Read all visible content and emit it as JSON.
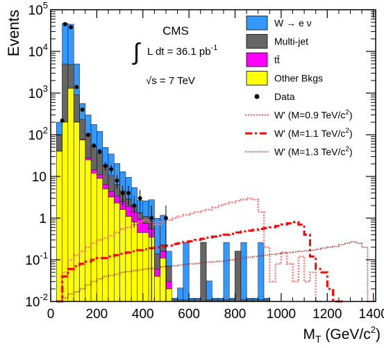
{
  "chart_data": {
    "type": "bar",
    "title": "",
    "xlabel_main": "M",
    "xlabel_sub": "T",
    "xlabel_rest": " (GeV/c",
    "xlabel_sup": "2",
    "xlabel_end": ")",
    "ylabel": "Events",
    "x_scale": "linear",
    "y_scale": "log",
    "xlim": [
      0,
      1410
    ],
    "ylim": [
      0.01,
      100000
    ],
    "x_ticks": [
      0,
      200,
      400,
      600,
      800,
      1000,
      1200,
      1400
    ],
    "x_tick_labels": [
      "0",
      "200",
      "400",
      "600",
      "800",
      "1000",
      "1200",
      "1400"
    ],
    "y_ticks": [
      {
        "value": 0.01,
        "mant": "10",
        "exp": "-2"
      },
      {
        "value": 0.1,
        "mant": "10",
        "exp": "-1"
      },
      {
        "value": 1,
        "mant": "1",
        "exp": ""
      },
      {
        "value": 10,
        "mant": "10",
        "exp": ""
      },
      {
        "value": 100,
        "mant": "10",
        "exp": "2"
      },
      {
        "value": 1000,
        "mant": "10",
        "exp": "3"
      },
      {
        "value": 10000,
        "mant": "10",
        "exp": "4"
      },
      {
        "value": 100000,
        "mant": "10",
        "exp": "5"
      }
    ],
    "annotations": {
      "experiment": "CMS",
      "lumi_integral": "∫",
      "lumi_text": "L dt = 36.1 pb",
      "lumi_exp": "-1",
      "energy_sqrt": "√",
      "energy_text": "s = 7 TeV"
    },
    "colors": {
      "wenu": "#3399ff",
      "multijet": "#666666",
      "ttbar": "#ff00ff",
      "other": "#ffff00",
      "data": "#000000",
      "wprime09": "#ff7777",
      "wprime11": "#ff0000",
      "wprime13": "#993333"
    },
    "legend": {
      "position": "top-right",
      "entries": [
        {
          "id": "wenu",
          "label": "W → e ν",
          "style": "box"
        },
        {
          "id": "multijet",
          "label": "Multi-jet",
          "style": "box"
        },
        {
          "id": "ttbar",
          "label": "tt̄",
          "style": "box"
        },
        {
          "id": "other",
          "label": "Other Bkgs",
          "style": "box"
        },
        {
          "id": "data",
          "label": "Data",
          "style": "marker"
        },
        {
          "id": "wprime09",
          "label": "W' (M=0.9 TeV/c",
          "sup": "2",
          "end": ")",
          "style": "dotted"
        },
        {
          "id": "wprime11",
          "label": "W' (M=1.1 TeV/c",
          "sup": "2",
          "end": ")",
          "style": "dashed"
        },
        {
          "id": "wprime13",
          "label": "W' (M=1.3 TeV/c",
          "sup": "2",
          "end": ")",
          "style": "dense-dotted"
        }
      ]
    },
    "bin_edges": [
      25,
      50,
      75,
      100,
      125,
      150,
      175,
      200,
      225,
      250,
      275,
      300,
      325,
      350,
      375,
      400,
      425,
      450,
      475,
      500,
      525,
      550,
      575,
      600,
      625,
      650,
      675,
      700,
      725,
      750,
      775,
      800,
      825,
      850,
      875,
      900,
      925,
      950
    ],
    "stack": [
      {
        "id": "other",
        "values": [
          40,
          200,
          1300,
          200,
          75,
          25,
          12,
          9,
          5,
          3.2,
          2.3,
          1.6,
          1.1,
          0.8,
          0.45,
          0.45,
          0.35,
          0.04,
          0.11,
          0.02,
          0.01,
          0.01,
          0.01,
          0.01,
          0.01,
          0.01,
          0.01,
          0.01,
          0.01,
          0.01,
          0.01,
          0.01,
          0.01,
          0.01,
          0.01,
          0.01,
          0.01
        ]
      },
      {
        "id": "ttbar",
        "values": [
          0.1,
          0.4,
          2,
          3,
          3,
          3,
          2.5,
          2,
          1.5,
          1.2,
          1.1,
          0.9,
          0.8,
          0.6,
          0.5,
          0.3,
          0.2,
          0.02,
          0.05,
          0.01,
          0,
          0,
          0,
          0,
          0,
          0,
          0,
          0,
          0,
          0,
          0,
          0,
          0,
          0,
          0,
          0,
          0
        ]
      },
      {
        "id": "multijet",
        "values": [
          60,
          4800,
          3500,
          700,
          155,
          75,
          38,
          25,
          12,
          6,
          3,
          2,
          1,
          0.6,
          0.4,
          0.35,
          0.3,
          0.08,
          0.07,
          0.04,
          0.001,
          0.001,
          0.001,
          0.001,
          0.001,
          0.25,
          0.001,
          0.001,
          0.001,
          0.001,
          0.001,
          0.15,
          0.001,
          0.001,
          0.001,
          0.001,
          0.001
        ]
      },
      {
        "id": "wenu",
        "values": [
          100,
          42000,
          40000,
          4100,
          330,
          195,
          123,
          84,
          31,
          24,
          14,
          8.5,
          6.6,
          3.4,
          1.3,
          1.5,
          1.9,
          0.85,
          0.94,
          0.09,
          0.001,
          0.01,
          0.249,
          0.001,
          0.001,
          0.001,
          0.02,
          0.001,
          0.001,
          0.249,
          0.001,
          0.001,
          0.249,
          0.001,
          0.001,
          0.249,
          0.001
        ]
      }
    ],
    "data_points": [
      {
        "x": 50,
        "y": 220
      },
      {
        "x": 62.5,
        "y": 45000
      },
      {
        "x": 87.5,
        "y": 38000
      },
      {
        "x": 112.5,
        "y": 1400
      },
      {
        "x": 137.5,
        "y": 400
      },
      {
        "x": 162.5,
        "y": 100
      },
      {
        "x": 187.5,
        "y": 55
      },
      {
        "x": 212.5,
        "y": 40
      },
      {
        "x": 237.5,
        "y": 18
      },
      {
        "x": 262.5,
        "y": 15
      },
      {
        "x": 287.5,
        "y": 8
      },
      {
        "x": 312.5,
        "y": 4
      },
      {
        "x": 337.5,
        "y": 4
      },
      {
        "x": 362.5,
        "y": 2
      },
      {
        "x": 387.5,
        "y": 3
      },
      {
        "x": 437.5,
        "y": 1
      },
      {
        "x": 500,
        "y": 1
      }
    ],
    "signals": [
      {
        "id": "wprime09",
        "x": [
          25,
          50,
          75,
          100,
          125,
          150,
          175,
          200,
          225,
          250,
          275,
          300,
          325,
          350,
          375,
          400,
          425,
          450,
          475,
          500,
          525,
          550,
          575,
          600,
          625,
          650,
          675,
          700,
          725,
          750,
          775,
          800,
          825,
          850,
          875,
          900,
          925,
          950,
          975,
          1000,
          1025,
          1050,
          1075,
          1100,
          1125,
          1150
        ],
        "y": [
          0.01,
          0.05,
          0.1,
          0.13,
          0.16,
          0.2,
          0.25,
          0.3,
          0.33,
          0.38,
          0.45,
          0.55,
          0.6,
          0.7,
          0.8,
          0.9,
          0.8,
          0.7,
          0.8,
          0.9,
          1.0,
          1.1,
          1.2,
          1.3,
          1.4,
          1.5,
          1.6,
          1.8,
          2.0,
          2.2,
          2.4,
          2.6,
          2.8,
          3.0,
          2.8,
          1.4,
          0.2,
          0.03,
          0.08,
          0.15,
          0.08,
          0.03,
          0.12,
          0.03,
          0.05,
          0.01
        ]
      },
      {
        "id": "wprime11",
        "x": [
          25,
          50,
          75,
          100,
          125,
          150,
          175,
          200,
          225,
          250,
          275,
          300,
          325,
          350,
          375,
          400,
          425,
          450,
          475,
          500,
          525,
          550,
          575,
          600,
          625,
          650,
          675,
          700,
          725,
          750,
          775,
          800,
          825,
          850,
          875,
          900,
          925,
          950,
          975,
          1000,
          1025,
          1050,
          1075,
          1100,
          1125,
          1150,
          1175,
          1200,
          1225,
          1250
        ],
        "y": [
          0.01,
          0.04,
          0.06,
          0.07,
          0.08,
          0.09,
          0.1,
          0.11,
          0.11,
          0.12,
          0.13,
          0.14,
          0.15,
          0.16,
          0.17,
          0.18,
          0.19,
          0.2,
          0.21,
          0.22,
          0.24,
          0.25,
          0.27,
          0.28,
          0.3,
          0.32,
          0.34,
          0.36,
          0.38,
          0.4,
          0.42,
          0.45,
          0.48,
          0.5,
          0.52,
          0.55,
          0.58,
          0.6,
          0.65,
          0.7,
          0.75,
          0.8,
          0.7,
          0.4,
          0.12,
          0.06,
          0.05,
          0.02,
          0.01,
          0.01
        ]
      },
      {
        "id": "wprime13",
        "x": [
          25,
          50,
          75,
          100,
          125,
          150,
          175,
          200,
          225,
          250,
          275,
          300,
          325,
          350,
          375,
          400,
          425,
          450,
          475,
          500,
          525,
          550,
          575,
          600,
          625,
          650,
          675,
          700,
          725,
          750,
          775,
          800,
          825,
          850,
          875,
          900,
          925,
          950,
          975,
          1000,
          1025,
          1050,
          1075,
          1100,
          1125,
          1150,
          1175,
          1200,
          1225,
          1250,
          1275,
          1300,
          1325,
          1350,
          1375
        ],
        "y": [
          0.01,
          0.012,
          0.015,
          0.017,
          0.02,
          0.025,
          0.03,
          0.035,
          0.04,
          0.042,
          0.045,
          0.05,
          0.052,
          0.055,
          0.057,
          0.06,
          0.062,
          0.065,
          0.068,
          0.07,
          0.072,
          0.075,
          0.078,
          0.08,
          0.082,
          0.085,
          0.088,
          0.09,
          0.092,
          0.095,
          0.1,
          0.105,
          0.11,
          0.115,
          0.12,
          0.125,
          0.13,
          0.135,
          0.14,
          0.145,
          0.15,
          0.155,
          0.16,
          0.165,
          0.17,
          0.18,
          0.19,
          0.2,
          0.21,
          0.23,
          0.25,
          0.27,
          0.25,
          0.2,
          0.01
        ]
      }
    ]
  }
}
